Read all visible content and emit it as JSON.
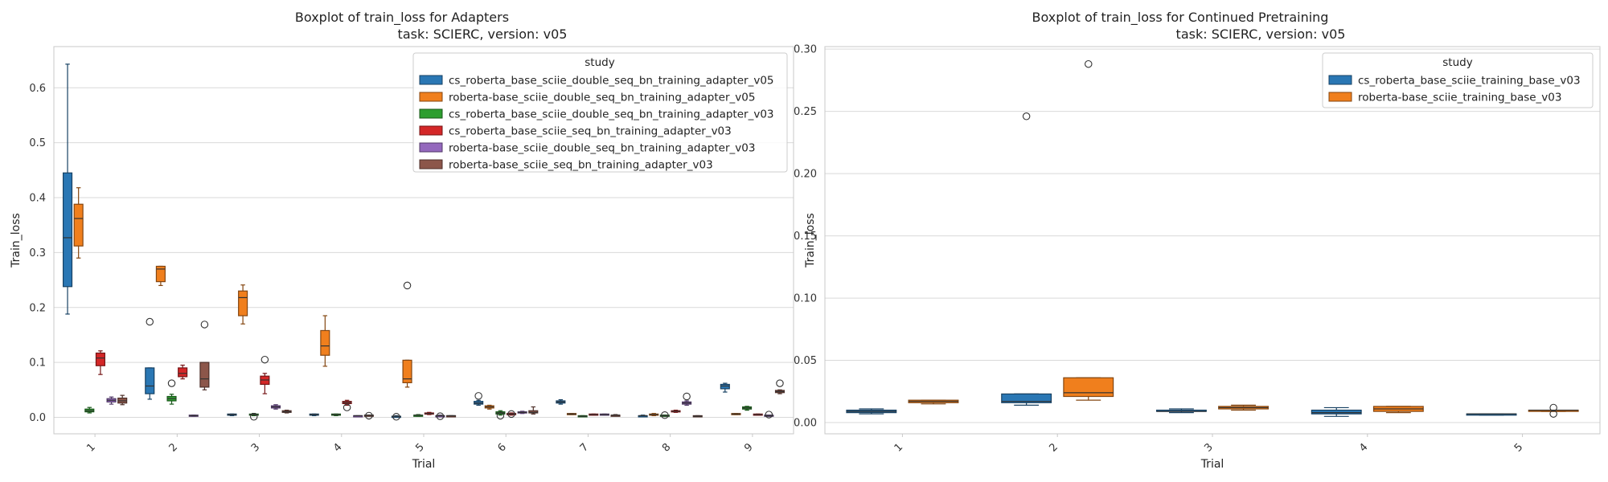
{
  "colors": {
    "grid": "#d9d9d9",
    "frame": "#c8c8c8",
    "median": "#333333",
    "series": [
      "#2a77b4",
      "#f07f1d",
      "#2d9e2f",
      "#d42728",
      "#9468bd",
      "#8c564a"
    ]
  },
  "chart_data": [
    {
      "type": "box",
      "title": "Boxplot of train_loss for Adapters",
      "subtitle": "task: SCIERC, version: v05",
      "xlabel": "Trial",
      "ylabel": "Train_loss",
      "ylim": [
        -0.03,
        0.675
      ],
      "yticks": [
        0.0,
        0.1,
        0.2,
        0.3,
        0.4,
        0.5,
        0.6
      ],
      "ytick_labels": [
        "0.0",
        "0.1",
        "0.2",
        "0.3",
        "0.4",
        "0.5",
        "0.6"
      ],
      "categories": [
        "1",
        "2",
        "3",
        "4",
        "5",
        "6",
        "7",
        "8",
        "9"
      ],
      "grid": true,
      "legend": {
        "title": "study",
        "position": "top-right",
        "labels": [
          "cs_roberta_base_sciie_double_seq_bn_training_adapter_v05",
          "roberta-base_sciie_double_seq_bn_training_adapter_v05",
          "cs_roberta_base_sciie_double_seq_bn_training_adapter_v03",
          "cs_roberta_base_sciie_seq_bn_training_adapter_v03",
          "roberta-base_sciie_double_seq_bn_training_adapter_v03",
          "roberta-base_sciie_seq_bn_training_adapter_v03"
        ]
      },
      "boxes": [
        {
          "cat": 0,
          "s": 0,
          "lw": 0.188,
          "q1": 0.238,
          "med": 0.327,
          "q3": 0.445,
          "uw": 0.643,
          "out": []
        },
        {
          "cat": 0,
          "s": 1,
          "lw": 0.29,
          "q1": 0.312,
          "med": 0.362,
          "q3": 0.388,
          "uw": 0.418,
          "out": []
        },
        {
          "cat": 0,
          "s": 2,
          "lw": 0.008,
          "q1": 0.01,
          "med": 0.012,
          "q3": 0.015,
          "uw": 0.018,
          "out": []
        },
        {
          "cat": 0,
          "s": 3,
          "lw": 0.078,
          "q1": 0.094,
          "med": 0.108,
          "q3": 0.117,
          "uw": 0.121,
          "out": []
        },
        {
          "cat": 0,
          "s": 4,
          "lw": 0.024,
          "q1": 0.028,
          "med": 0.031,
          "q3": 0.034,
          "uw": 0.037,
          "out": []
        },
        {
          "cat": 0,
          "s": 5,
          "lw": 0.023,
          "q1": 0.026,
          "med": 0.03,
          "q3": 0.035,
          "uw": 0.04,
          "out": []
        },
        {
          "cat": 1,
          "s": 0,
          "lw": 0.033,
          "q1": 0.043,
          "med": 0.057,
          "q3": 0.09,
          "uw": 0.09,
          "out": [
            0.174
          ]
        },
        {
          "cat": 1,
          "s": 1,
          "lw": 0.24,
          "q1": 0.247,
          "med": 0.27,
          "q3": 0.275,
          "uw": 0.275,
          "out": []
        },
        {
          "cat": 1,
          "s": 2,
          "lw": 0.024,
          "q1": 0.03,
          "med": 0.034,
          "q3": 0.038,
          "uw": 0.042,
          "out": [
            0.062
          ]
        },
        {
          "cat": 1,
          "s": 3,
          "lw": 0.07,
          "q1": 0.074,
          "med": 0.08,
          "q3": 0.09,
          "uw": 0.095,
          "out": []
        },
        {
          "cat": 1,
          "s": 4,
          "lw": 0.002,
          "q1": 0.003,
          "med": 0.003,
          "q3": 0.004,
          "uw": 0.004,
          "out": []
        },
        {
          "cat": 1,
          "s": 5,
          "lw": 0.05,
          "q1": 0.055,
          "med": 0.07,
          "q3": 0.1,
          "uw": 0.1,
          "out": [
            0.169
          ]
        },
        {
          "cat": 2,
          "s": 0,
          "lw": 0.003,
          "q1": 0.004,
          "med": 0.005,
          "q3": 0.006,
          "uw": 0.006,
          "out": []
        },
        {
          "cat": 2,
          "s": 1,
          "lw": 0.17,
          "q1": 0.185,
          "med": 0.218,
          "q3": 0.23,
          "uw": 0.241,
          "out": []
        },
        {
          "cat": 2,
          "s": 2,
          "lw": 0.003,
          "q1": 0.004,
          "med": 0.005,
          "q3": 0.006,
          "uw": 0.007,
          "out": [
            0.001
          ]
        },
        {
          "cat": 2,
          "s": 3,
          "lw": 0.043,
          "q1": 0.06,
          "med": 0.068,
          "q3": 0.075,
          "uw": 0.08,
          "out": [
            0.105
          ]
        },
        {
          "cat": 2,
          "s": 4,
          "lw": 0.015,
          "q1": 0.017,
          "med": 0.019,
          "q3": 0.021,
          "uw": 0.023,
          "out": []
        },
        {
          "cat": 2,
          "s": 5,
          "lw": 0.008,
          "q1": 0.009,
          "med": 0.01,
          "q3": 0.012,
          "uw": 0.013,
          "out": []
        },
        {
          "cat": 3,
          "s": 0,
          "lw": 0.003,
          "q1": 0.004,
          "med": 0.005,
          "q3": 0.006,
          "uw": 0.006,
          "out": []
        },
        {
          "cat": 3,
          "s": 1,
          "lw": 0.093,
          "q1": 0.113,
          "med": 0.13,
          "q3": 0.158,
          "uw": 0.185,
          "out": []
        },
        {
          "cat": 3,
          "s": 2,
          "lw": 0.003,
          "q1": 0.004,
          "med": 0.005,
          "q3": 0.006,
          "uw": 0.006,
          "out": []
        },
        {
          "cat": 3,
          "s": 3,
          "lw": 0.022,
          "q1": 0.025,
          "med": 0.027,
          "q3": 0.029,
          "uw": 0.031,
          "out": [
            0.018
          ]
        },
        {
          "cat": 3,
          "s": 4,
          "lw": 0.002,
          "q1": 0.002,
          "med": 0.003,
          "q3": 0.003,
          "uw": 0.003,
          "out": []
        },
        {
          "cat": 3,
          "s": 5,
          "lw": 0.003,
          "q1": 0.003,
          "med": 0.004,
          "q3": 0.004,
          "uw": 0.004,
          "out": [
            0.003
          ]
        },
        {
          "cat": 4,
          "s": 0,
          "lw": 0.001,
          "q1": 0.001,
          "med": 0.002,
          "q3": 0.002,
          "uw": 0.003,
          "out": [
            0.001
          ]
        },
        {
          "cat": 4,
          "s": 1,
          "lw": 0.055,
          "q1": 0.063,
          "med": 0.07,
          "q3": 0.104,
          "uw": 0.104,
          "out": [
            0.24
          ]
        },
        {
          "cat": 4,
          "s": 2,
          "lw": 0.002,
          "q1": 0.003,
          "med": 0.004,
          "q3": 0.004,
          "uw": 0.005,
          "out": []
        },
        {
          "cat": 4,
          "s": 3,
          "lw": 0.005,
          "q1": 0.006,
          "med": 0.007,
          "q3": 0.008,
          "uw": 0.009,
          "out": []
        },
        {
          "cat": 4,
          "s": 4,
          "lw": 0.002,
          "q1": 0.002,
          "med": 0.003,
          "q3": 0.003,
          "uw": 0.004,
          "out": [
            0.002
          ]
        },
        {
          "cat": 4,
          "s": 5,
          "lw": 0.002,
          "q1": 0.002,
          "med": 0.003,
          "q3": 0.003,
          "uw": 0.003,
          "out": []
        },
        {
          "cat": 5,
          "s": 0,
          "lw": 0.022,
          "q1": 0.024,
          "med": 0.026,
          "q3": 0.029,
          "uw": 0.031,
          "out": [
            0.039
          ]
        },
        {
          "cat": 5,
          "s": 1,
          "lw": 0.015,
          "q1": 0.017,
          "med": 0.019,
          "q3": 0.021,
          "uw": 0.022,
          "out": []
        },
        {
          "cat": 5,
          "s": 2,
          "lw": 0.004,
          "q1": 0.006,
          "med": 0.008,
          "q3": 0.01,
          "uw": 0.012,
          "out": [
            0.003
          ]
        },
        {
          "cat": 5,
          "s": 3,
          "lw": 0.004,
          "q1": 0.005,
          "med": 0.006,
          "q3": 0.007,
          "uw": 0.008,
          "out": [
            0.006
          ]
        },
        {
          "cat": 5,
          "s": 4,
          "lw": 0.007,
          "q1": 0.008,
          "med": 0.009,
          "q3": 0.01,
          "uw": 0.011,
          "out": []
        },
        {
          "cat": 5,
          "s": 5,
          "lw": 0.006,
          "q1": 0.008,
          "med": 0.009,
          "q3": 0.012,
          "uw": 0.019,
          "out": []
        },
        {
          "cat": 6,
          "s": 0,
          "lw": 0.024,
          "q1": 0.026,
          "med": 0.028,
          "q3": 0.03,
          "uw": 0.032,
          "out": []
        },
        {
          "cat": 6,
          "s": 1,
          "lw": 0.005,
          "q1": 0.006,
          "med": 0.006,
          "q3": 0.007,
          "uw": 0.007,
          "out": []
        },
        {
          "cat": 6,
          "s": 2,
          "lw": 0.002,
          "q1": 0.002,
          "med": 0.002,
          "q3": 0.003,
          "uw": 0.003,
          "out": []
        },
        {
          "cat": 6,
          "s": 3,
          "lw": 0.004,
          "q1": 0.005,
          "med": 0.005,
          "q3": 0.006,
          "uw": 0.006,
          "out": []
        },
        {
          "cat": 6,
          "s": 4,
          "lw": 0.004,
          "q1": 0.005,
          "med": 0.005,
          "q3": 0.006,
          "uw": 0.006,
          "out": []
        },
        {
          "cat": 6,
          "s": 5,
          "lw": 0.003,
          "q1": 0.003,
          "med": 0.004,
          "q3": 0.004,
          "uw": 0.005,
          "out": []
        },
        {
          "cat": 7,
          "s": 0,
          "lw": 0.002,
          "q1": 0.002,
          "med": 0.003,
          "q3": 0.003,
          "uw": 0.004,
          "out": []
        },
        {
          "cat": 7,
          "s": 1,
          "lw": 0.003,
          "q1": 0.004,
          "med": 0.005,
          "q3": 0.006,
          "uw": 0.007,
          "out": []
        },
        {
          "cat": 7,
          "s": 2,
          "lw": 0.002,
          "q1": 0.003,
          "med": 0.003,
          "q3": 0.004,
          "uw": 0.004,
          "out": [
            0.004
          ]
        },
        {
          "cat": 7,
          "s": 3,
          "lw": 0.009,
          "q1": 0.01,
          "med": 0.011,
          "q3": 0.012,
          "uw": 0.013,
          "out": []
        },
        {
          "cat": 7,
          "s": 4,
          "lw": 0.022,
          "q1": 0.024,
          "med": 0.026,
          "q3": 0.028,
          "uw": 0.03,
          "out": [
            0.038
          ]
        },
        {
          "cat": 7,
          "s": 5,
          "lw": 0.002,
          "q1": 0.002,
          "med": 0.002,
          "q3": 0.003,
          "uw": 0.003,
          "out": []
        },
        {
          "cat": 8,
          "s": 0,
          "lw": 0.046,
          "q1": 0.052,
          "med": 0.057,
          "q3": 0.06,
          "uw": 0.062,
          "out": []
        },
        {
          "cat": 8,
          "s": 1,
          "lw": 0.005,
          "q1": 0.006,
          "med": 0.006,
          "q3": 0.007,
          "uw": 0.007,
          "out": []
        },
        {
          "cat": 8,
          "s": 2,
          "lw": 0.013,
          "q1": 0.015,
          "med": 0.017,
          "q3": 0.019,
          "uw": 0.02,
          "out": []
        },
        {
          "cat": 8,
          "s": 3,
          "lw": 0.004,
          "q1": 0.005,
          "med": 0.005,
          "q3": 0.006,
          "uw": 0.006,
          "out": []
        },
        {
          "cat": 8,
          "s": 4,
          "lw": 0.002,
          "q1": 0.003,
          "med": 0.003,
          "q3": 0.004,
          "uw": 0.004,
          "out": [
            0.005
          ]
        },
        {
          "cat": 8,
          "s": 5,
          "lw": 0.043,
          "q1": 0.045,
          "med": 0.047,
          "q3": 0.049,
          "uw": 0.05,
          "out": [
            0.062
          ]
        }
      ]
    },
    {
      "type": "box",
      "title": "Boxplot of train_loss for Continued Pretraining",
      "subtitle": "task: SCIERC, version: v05",
      "xlabel": "Trial",
      "ylabel": "Train_loss",
      "ylim": [
        -0.009,
        0.302
      ],
      "yticks": [
        0.0,
        0.05,
        0.1,
        0.15,
        0.2,
        0.25,
        0.3
      ],
      "ytick_labels": [
        "0.00",
        "0.05",
        "0.10",
        "0.15",
        "0.20",
        "0.25",
        "0.30"
      ],
      "categories": [
        "1",
        "2",
        "3",
        "4",
        "5"
      ],
      "grid": true,
      "legend": {
        "title": "study",
        "position": "top-right",
        "labels": [
          "cs_roberta_base_sciie_training_base_v03",
          "roberta-base_sciie_training_base_v03"
        ]
      },
      "boxes": [
        {
          "cat": 0,
          "s": 0,
          "lw": 0.007,
          "q1": 0.008,
          "med": 0.009,
          "q3": 0.01,
          "uw": 0.011,
          "out": []
        },
        {
          "cat": 0,
          "s": 1,
          "lw": 0.015,
          "q1": 0.016,
          "med": 0.017,
          "q3": 0.018,
          "uw": 0.018,
          "out": []
        },
        {
          "cat": 1,
          "s": 0,
          "lw": 0.014,
          "q1": 0.016,
          "med": 0.017,
          "q3": 0.023,
          "uw": 0.023,
          "out": [
            0.246
          ]
        },
        {
          "cat": 1,
          "s": 1,
          "lw": 0.018,
          "q1": 0.021,
          "med": 0.024,
          "q3": 0.036,
          "uw": 0.036,
          "out": [
            0.288
          ]
        },
        {
          "cat": 2,
          "s": 0,
          "lw": 0.008,
          "q1": 0.009,
          "med": 0.009,
          "q3": 0.01,
          "uw": 0.011,
          "out": []
        },
        {
          "cat": 2,
          "s": 1,
          "lw": 0.01,
          "q1": 0.011,
          "med": 0.012,
          "q3": 0.013,
          "uw": 0.014,
          "out": []
        },
        {
          "cat": 3,
          "s": 0,
          "lw": 0.005,
          "q1": 0.007,
          "med": 0.008,
          "q3": 0.01,
          "uw": 0.012,
          "out": []
        },
        {
          "cat": 3,
          "s": 1,
          "lw": 0.008,
          "q1": 0.009,
          "med": 0.011,
          "q3": 0.013,
          "uw": 0.013,
          "out": []
        },
        {
          "cat": 4,
          "s": 0,
          "lw": 0.006,
          "q1": 0.006,
          "med": 0.007,
          "q3": 0.007,
          "uw": 0.007,
          "out": []
        },
        {
          "cat": 4,
          "s": 1,
          "lw": 0.009,
          "q1": 0.009,
          "med": 0.01,
          "q3": 0.01,
          "uw": 0.01,
          "out": [
            0.007,
            0.012
          ]
        }
      ]
    }
  ]
}
